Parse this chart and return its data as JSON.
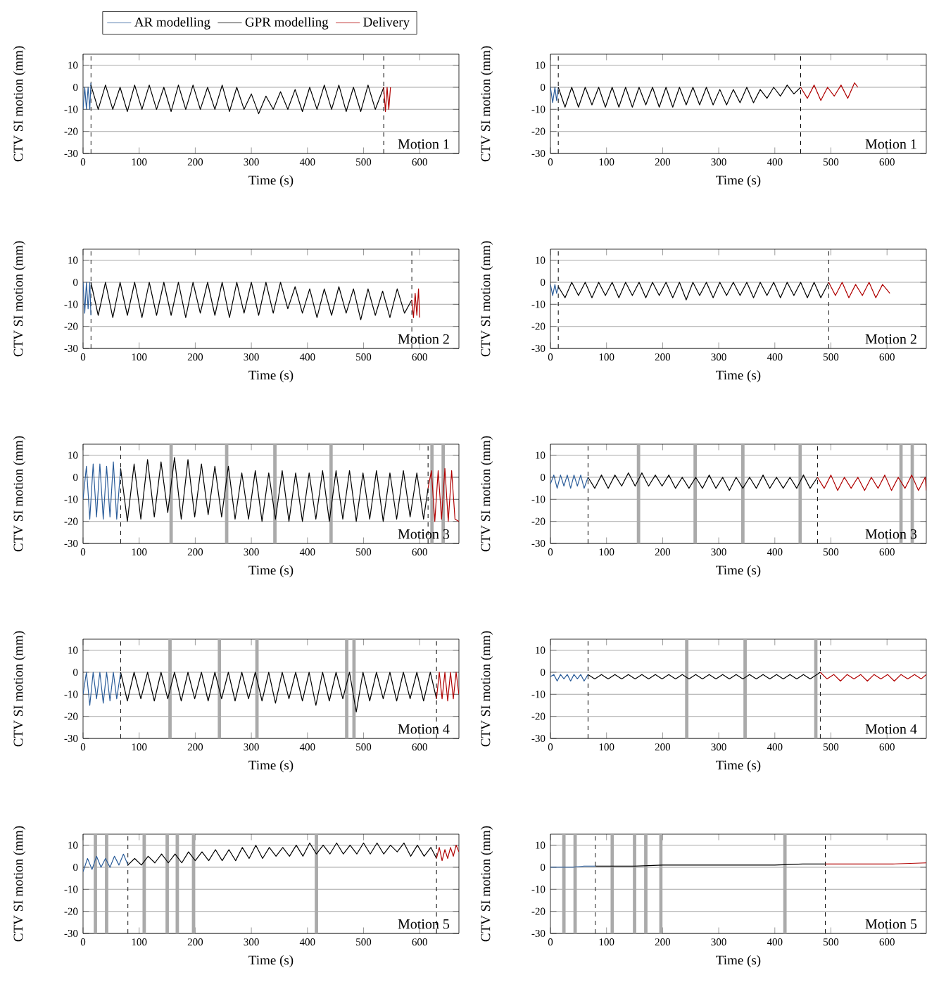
{
  "chart_data": [
    {
      "type": "line",
      "xlabel": "Time (s)",
      "ylabel": "CTV SI motion (mm)",
      "xlim": [
        0,
        670
      ],
      "ylim": [
        -30,
        15
      ],
      "xticks": [
        0,
        100,
        200,
        300,
        400,
        500,
        600
      ],
      "yticks": [
        -30,
        -20,
        -10,
        0,
        10
      ],
      "grid": "y",
      "legend": "top",
      "annotations": [
        "Motion 1"
      ],
      "ref_lines": [
        {
          "axis": "x",
          "value": 14,
          "line_style": "dashed"
        },
        {
          "axis": "x",
          "value": 536,
          "line_style": "dashed"
        }
      ],
      "series": [
        {
          "name": "AR modelling",
          "color": "#2b5d9a",
          "x": [
            0,
            3,
            6,
            9,
            12,
            14
          ],
          "values": [
            -10,
            0,
            -10,
            0,
            -10,
            2
          ]
        },
        {
          "name": "GPR modelling",
          "color": "#000000",
          "x": [
            14,
            27,
            40,
            53,
            66,
            79,
            92,
            105,
            118,
            131,
            144,
            157,
            170,
            183,
            196,
            209,
            222,
            235,
            248,
            261,
            274,
            287,
            300,
            313,
            326,
            339,
            352,
            365,
            378,
            391,
            404,
            417,
            430,
            443,
            456,
            469,
            482,
            495,
            508,
            521,
            536
          ],
          "values": [
            1,
            -10,
            1,
            -10,
            0,
            -11,
            1,
            -10,
            1,
            -10,
            0,
            -11,
            1,
            -10,
            1,
            -10,
            0,
            -10,
            1,
            -11,
            0,
            -10,
            -3,
            -12,
            -4,
            -10,
            -2,
            -10,
            -1,
            -11,
            0,
            -10,
            1,
            -10,
            1,
            -11,
            0,
            -11,
            1,
            -10,
            0
          ]
        },
        {
          "name": "Delivery",
          "color": "#b00000",
          "x": [
            536,
            539,
            542,
            545,
            548
          ],
          "values": [
            0,
            -11,
            0,
            -10,
            0
          ]
        }
      ]
    },
    {
      "type": "line",
      "xlabel": "Time (s)",
      "ylabel": "CTV SI motion (mm)",
      "xlim": [
        0,
        670
      ],
      "ylim": [
        -30,
        15
      ],
      "xticks": [
        0,
        100,
        200,
        300,
        400,
        500,
        600
      ],
      "yticks": [
        -30,
        -20,
        -10,
        0,
        10
      ],
      "grid": "y",
      "annotations": [
        "Motion 1"
      ],
      "ref_lines": [
        {
          "axis": "x",
          "value": 14,
          "line_style": "dashed"
        },
        {
          "axis": "x",
          "value": 446,
          "line_style": "dashed"
        }
      ],
      "series": [
        {
          "color": "#2b5d9a",
          "x": [
            0,
            4,
            8,
            11,
            14
          ],
          "values": [
            0,
            -7,
            0,
            -6,
            0
          ]
        },
        {
          "color": "#000000",
          "x": [
            14,
            26,
            38,
            50,
            62,
            74,
            86,
            98,
            110,
            122,
            134,
            146,
            158,
            170,
            182,
            194,
            206,
            218,
            230,
            242,
            254,
            266,
            278,
            290,
            302,
            314,
            326,
            338,
            350,
            362,
            374,
            386,
            398,
            410,
            422,
            434,
            446
          ],
          "values": [
            0,
            -9,
            0,
            -9,
            0,
            -8,
            0,
            -9,
            0,
            -9,
            0,
            -9,
            0,
            -8,
            0,
            -9,
            0,
            -9,
            0,
            -8,
            0,
            -8,
            0,
            -8,
            -1,
            -8,
            -1,
            -7,
            0,
            -7,
            -1,
            -5,
            0,
            -4,
            1,
            -3,
            0
          ]
        },
        {
          "color": "#b00000",
          "x": [
            446,
            458,
            470,
            482,
            494,
            506,
            518,
            530,
            542,
            548
          ],
          "values": [
            0,
            -5,
            1,
            -6,
            0,
            -4,
            1,
            -5,
            2,
            0
          ]
        }
      ]
    },
    {
      "type": "line",
      "xlabel": "Time (s)",
      "ylabel": "CTV SI motion (mm)",
      "xlim": [
        0,
        670
      ],
      "ylim": [
        -30,
        15
      ],
      "xticks": [
        0,
        100,
        200,
        300,
        400,
        500,
        600
      ],
      "yticks": [
        -30,
        -20,
        -10,
        0,
        10
      ],
      "grid": "y",
      "annotations": [
        "Motion 2"
      ],
      "ref_lines": [
        {
          "axis": "x",
          "value": 14,
          "line_style": "dashed"
        },
        {
          "axis": "x",
          "value": 586,
          "line_style": "dashed"
        }
      ],
      "series": [
        {
          "color": "#2b5d9a",
          "x": [
            0,
            3,
            6,
            9,
            12,
            14
          ],
          "values": [
            0,
            -14,
            0,
            -12,
            0,
            -15
          ]
        },
        {
          "color": "#000000",
          "x": [
            14,
            27,
            40,
            53,
            66,
            79,
            92,
            105,
            118,
            131,
            144,
            157,
            170,
            183,
            196,
            209,
            222,
            235,
            248,
            261,
            274,
            287,
            300,
            313,
            326,
            339,
            352,
            365,
            378,
            391,
            404,
            417,
            430,
            443,
            456,
            469,
            482,
            495,
            508,
            521,
            534,
            547,
            560,
            573,
            586
          ],
          "values": [
            0,
            -15,
            0,
            -16,
            0,
            -15,
            0,
            -16,
            0,
            -15,
            0,
            -15,
            0,
            -16,
            0,
            -14,
            0,
            -15,
            0,
            -16,
            0,
            -14,
            0,
            -15,
            0,
            -14,
            0,
            -12,
            -2,
            -14,
            -3,
            -16,
            -3,
            -15,
            -2,
            -14,
            -3,
            -17,
            -3,
            -15,
            -4,
            -16,
            -3,
            -14,
            -8
          ]
        },
        {
          "color": "#b00000",
          "x": [
            586,
            589,
            592,
            595,
            598,
            600
          ],
          "values": [
            -8,
            -16,
            -5,
            -15,
            -3,
            -16
          ]
        }
      ]
    },
    {
      "type": "line",
      "xlabel": "Time (s)",
      "ylabel": "CTV SI motion (mm)",
      "xlim": [
        0,
        670
      ],
      "ylim": [
        -30,
        15
      ],
      "xticks": [
        0,
        100,
        200,
        300,
        400,
        500,
        600
      ],
      "yticks": [
        -30,
        -20,
        -10,
        0,
        10
      ],
      "grid": "y",
      "annotations": [
        "Motion 2"
      ],
      "ref_lines": [
        {
          "axis": "x",
          "value": 14,
          "line_style": "dashed"
        },
        {
          "axis": "x",
          "value": 496,
          "line_style": "dashed"
        }
      ],
      "series": [
        {
          "color": "#2b5d9a",
          "x": [
            0,
            4,
            8,
            11,
            14
          ],
          "values": [
            -1,
            -6,
            -1,
            -5,
            -2
          ]
        },
        {
          "color": "#000000",
          "x": [
            14,
            26,
            38,
            50,
            62,
            74,
            86,
            98,
            110,
            122,
            134,
            146,
            158,
            170,
            182,
            194,
            206,
            218,
            230,
            242,
            254,
            266,
            278,
            290,
            302,
            314,
            326,
            338,
            350,
            362,
            374,
            386,
            398,
            410,
            422,
            434,
            446,
            458,
            470,
            482,
            496
          ],
          "values": [
            -2,
            -7,
            0,
            -6,
            0,
            -7,
            0,
            -6,
            0,
            -7,
            0,
            -6,
            0,
            -7,
            0,
            -6,
            0,
            -7,
            0,
            -8,
            0,
            -6,
            0,
            -7,
            0,
            -6,
            0,
            -6,
            0,
            -7,
            0,
            -6,
            0,
            -7,
            0,
            -6,
            0,
            -7,
            0,
            -7,
            0
          ]
        },
        {
          "color": "#b00000",
          "x": [
            496,
            508,
            520,
            532,
            544,
            556,
            568,
            580,
            592,
            605
          ],
          "values": [
            0,
            -6,
            0,
            -7,
            -1,
            -6,
            0,
            -7,
            -1,
            -5
          ]
        }
      ]
    },
    {
      "type": "line",
      "xlabel": "Time (s)",
      "ylabel": "CTV SI motion (mm)",
      "xlim": [
        0,
        670
      ],
      "ylim": [
        -30,
        15
      ],
      "xticks": [
        0,
        100,
        200,
        300,
        400,
        500,
        600
      ],
      "yticks": [
        -30,
        -20,
        -10,
        0,
        10
      ],
      "grid": "y",
      "annotations": [
        "Motion 3"
      ],
      "ref_lines": [
        {
          "axis": "x",
          "value": 67,
          "line_style": "dashed"
        },
        {
          "axis": "x",
          "value": 615,
          "line_style": "dashed"
        }
      ],
      "bands": [
        {
          "axis": "x",
          "from": 154,
          "to": 160,
          "color": "#aaaaaa"
        },
        {
          "axis": "x",
          "from": 253,
          "to": 259,
          "color": "#aaaaaa"
        },
        {
          "axis": "x",
          "from": 339,
          "to": 345,
          "color": "#aaaaaa"
        },
        {
          "axis": "x",
          "from": 439,
          "to": 445,
          "color": "#aaaaaa"
        },
        {
          "axis": "x",
          "from": 619,
          "to": 625,
          "color": "#aaaaaa"
        },
        {
          "axis": "x",
          "from": 639,
          "to": 645,
          "color": "#aaaaaa"
        }
      ],
      "series": [
        {
          "color": "#2b5d9a",
          "x": [
            0,
            6,
            12,
            18,
            24,
            30,
            36,
            42,
            48,
            54,
            60,
            67
          ],
          "values": [
            -10,
            5,
            -19,
            6,
            -18,
            6,
            -19,
            5,
            -18,
            7,
            -19,
            4
          ]
        },
        {
          "color": "#000000",
          "x": [
            67,
            79,
            91,
            103,
            115,
            127,
            139,
            151,
            163,
            175,
            187,
            199,
            211,
            223,
            235,
            247,
            259,
            271,
            283,
            295,
            307,
            319,
            331,
            343,
            355,
            367,
            379,
            391,
            403,
            415,
            427,
            439,
            451,
            463,
            475,
            487,
            499,
            511,
            523,
            535,
            547,
            559,
            571,
            583,
            595,
            607,
            615
          ],
          "values": [
            4,
            -20,
            6,
            -19,
            8,
            -18,
            7,
            -16,
            9,
            -19,
            8,
            -18,
            6,
            -17,
            5,
            -18,
            5,
            -19,
            2,
            -19,
            3,
            -20,
            2,
            -19,
            3,
            -20,
            2,
            -20,
            2,
            -19,
            3,
            -20,
            3,
            -19,
            3,
            -20,
            2,
            -19,
            3,
            -20,
            2,
            -19,
            3,
            -18,
            2,
            -19,
            -5
          ]
        },
        {
          "color": "#b00000",
          "x": [
            615,
            621,
            627,
            633,
            639,
            645,
            651,
            657,
            663,
            670
          ],
          "values": [
            -5,
            3,
            -20,
            3,
            -19,
            4,
            -20,
            3,
            -19,
            -20
          ]
        }
      ]
    },
    {
      "type": "line",
      "xlabel": "Time (s)",
      "ylabel": "CTV SI motion (mm)",
      "xlim": [
        0,
        670
      ],
      "ylim": [
        -30,
        15
      ],
      "xticks": [
        0,
        100,
        200,
        300,
        400,
        500,
        600
      ],
      "yticks": [
        -30,
        -20,
        -10,
        0,
        10
      ],
      "grid": "y",
      "annotations": [
        "Motion 3"
      ],
      "ref_lines": [
        {
          "axis": "x",
          "value": 67,
          "line_style": "dashed"
        },
        {
          "axis": "x",
          "value": 476,
          "line_style": "dashed"
        }
      ],
      "bands": [
        {
          "axis": "x",
          "from": 154,
          "to": 160,
          "color": "#aaaaaa"
        },
        {
          "axis": "x",
          "from": 255,
          "to": 261,
          "color": "#aaaaaa"
        },
        {
          "axis": "x",
          "from": 340,
          "to": 346,
          "color": "#aaaaaa"
        },
        {
          "axis": "x",
          "from": 442,
          "to": 448,
          "color": "#aaaaaa"
        },
        {
          "axis": "x",
          "from": 622,
          "to": 628,
          "color": "#aaaaaa"
        },
        {
          "axis": "x",
          "from": 642,
          "to": 648,
          "color": "#aaaaaa"
        }
      ],
      "series": [
        {
          "color": "#2b5d9a",
          "x": [
            0,
            6,
            12,
            18,
            24,
            30,
            36,
            42,
            48,
            54,
            60,
            67
          ],
          "values": [
            -3,
            1,
            -5,
            1,
            -4,
            1,
            -5,
            1,
            -4,
            1,
            -5,
            0
          ]
        },
        {
          "color": "#000000",
          "x": [
            67,
            79,
            91,
            103,
            115,
            127,
            139,
            151,
            163,
            175,
            187,
            199,
            211,
            223,
            235,
            247,
            259,
            271,
            283,
            295,
            307,
            319,
            331,
            343,
            355,
            367,
            379,
            391,
            403,
            415,
            427,
            439,
            451,
            463,
            476
          ],
          "values": [
            0,
            -5,
            1,
            -5,
            1,
            -4,
            2,
            -4,
            2,
            -4,
            1,
            -4,
            1,
            -5,
            0,
            -5,
            0,
            -5,
            1,
            -5,
            0,
            -6,
            0,
            -5,
            0,
            -5,
            1,
            -5,
            0,
            -5,
            0,
            -5,
            1,
            -5,
            0
          ]
        },
        {
          "color": "#b00000",
          "x": [
            476,
            488,
            500,
            512,
            524,
            536,
            548,
            560,
            572,
            584,
            596,
            608,
            620,
            632,
            644,
            656,
            668,
            670
          ],
          "values": [
            0,
            -5,
            1,
            -6,
            0,
            -5,
            0,
            -6,
            0,
            -5,
            1,
            -6,
            0,
            -5,
            1,
            -6,
            0,
            -6
          ]
        }
      ]
    },
    {
      "type": "line",
      "xlabel": "Time (s)",
      "ylabel": "CTV SI motion (mm)",
      "xlim": [
        0,
        670
      ],
      "ylim": [
        -30,
        15
      ],
      "xticks": [
        0,
        100,
        200,
        300,
        400,
        500,
        600
      ],
      "yticks": [
        -30,
        -20,
        -10,
        0,
        10
      ],
      "grid": "y",
      "annotations": [
        "Motion 4"
      ],
      "ref_lines": [
        {
          "axis": "x",
          "value": 67,
          "line_style": "dashed"
        },
        {
          "axis": "x",
          "value": 630,
          "line_style": "dashed"
        }
      ],
      "bands": [
        {
          "axis": "x",
          "from": 152,
          "to": 158,
          "color": "#aaaaaa"
        },
        {
          "axis": "x",
          "from": 240,
          "to": 246,
          "color": "#aaaaaa"
        },
        {
          "axis": "x",
          "from": 307,
          "to": 313,
          "color": "#aaaaaa"
        },
        {
          "axis": "x",
          "from": 467,
          "to": 473,
          "color": "#aaaaaa"
        },
        {
          "axis": "x",
          "from": 480,
          "to": 486,
          "color": "#aaaaaa"
        }
      ],
      "series": [
        {
          "color": "#2b5d9a",
          "x": [
            0,
            6,
            12,
            18,
            24,
            30,
            36,
            42,
            48,
            54,
            60,
            67
          ],
          "values": [
            -10,
            0,
            -15,
            0,
            -12,
            0,
            -14,
            0,
            -13,
            0,
            -12,
            0
          ]
        },
        {
          "color": "#000000",
          "x": [
            67,
            79,
            91,
            103,
            115,
            127,
            139,
            151,
            163,
            175,
            187,
            199,
            211,
            223,
            235,
            247,
            259,
            271,
            283,
            295,
            307,
            319,
            331,
            343,
            355,
            367,
            379,
            391,
            403,
            415,
            427,
            439,
            451,
            463,
            475,
            487,
            499,
            511,
            523,
            535,
            547,
            559,
            571,
            583,
            595,
            607,
            619,
            630
          ],
          "values": [
            0,
            -13,
            0,
            -12,
            0,
            -13,
            0,
            -12,
            0,
            -13,
            0,
            -12,
            0,
            -13,
            0,
            -12,
            0,
            -13,
            0,
            -12,
            0,
            -13,
            0,
            -14,
            0,
            -12,
            0,
            -13,
            0,
            -15,
            0,
            -13,
            0,
            -12,
            0,
            -18,
            0,
            -13,
            0,
            -12,
            0,
            -13,
            0,
            -12,
            0,
            -13,
            0,
            -12
          ]
        },
        {
          "color": "#b00000",
          "x": [
            630,
            635,
            640,
            645,
            650,
            655,
            660,
            665,
            670
          ],
          "values": [
            -12,
            0,
            -12,
            0,
            -13,
            0,
            -12,
            0,
            -10
          ]
        }
      ]
    },
    {
      "type": "line",
      "xlabel": "Time (s)",
      "ylabel": "CTV SI motion (mm)",
      "xlim": [
        0,
        670
      ],
      "ylim": [
        -30,
        15
      ],
      "xticks": [
        0,
        100,
        200,
        300,
        400,
        500,
        600
      ],
      "yticks": [
        -30,
        -20,
        -10,
        0,
        10
      ],
      "grid": "y",
      "annotations": [
        "Motion 4"
      ],
      "ref_lines": [
        {
          "axis": "x",
          "value": 67,
          "line_style": "dashed"
        },
        {
          "axis": "x",
          "value": 481,
          "line_style": "dashed"
        }
      ],
      "bands": [
        {
          "axis": "x",
          "from": 240,
          "to": 246,
          "color": "#aaaaaa"
        },
        {
          "axis": "x",
          "from": 344,
          "to": 350,
          "color": "#aaaaaa"
        },
        {
          "axis": "x",
          "from": 470,
          "to": 476,
          "color": "#aaaaaa"
        }
      ],
      "series": [
        {
          "color": "#2b5d9a",
          "x": [
            0,
            6,
            12,
            18,
            24,
            30,
            36,
            42,
            48,
            54,
            60,
            67
          ],
          "values": [
            -2,
            -1,
            -4,
            -1,
            -3,
            -1,
            -4,
            -1,
            -3,
            -1,
            -4,
            -1
          ]
        },
        {
          "color": "#000000",
          "x": [
            67,
            79,
            91,
            103,
            115,
            127,
            139,
            151,
            163,
            175,
            187,
            199,
            211,
            223,
            235,
            247,
            259,
            271,
            283,
            295,
            307,
            319,
            331,
            343,
            355,
            367,
            379,
            391,
            403,
            415,
            427,
            439,
            451,
            463,
            475,
            481
          ],
          "values": [
            -1,
            -3,
            -1,
            -3,
            -1,
            -3,
            -1,
            -3,
            -1,
            -3,
            -1,
            -3,
            -1,
            -3,
            -1,
            -3,
            -1,
            -3,
            -1,
            -3,
            -1,
            -3,
            -1,
            -3,
            -1,
            -3,
            -1,
            -3,
            -1,
            -3,
            -1,
            -3,
            -1,
            -3,
            -1,
            0
          ]
        },
        {
          "color": "#b00000",
          "x": [
            481,
            493,
            505,
            517,
            529,
            541,
            553,
            565,
            577,
            589,
            601,
            613,
            625,
            637,
            649,
            661,
            670
          ],
          "values": [
            0,
            -3,
            -1,
            -4,
            -1,
            -3,
            -1,
            -4,
            -1,
            -3,
            -1,
            -4,
            -1,
            -3,
            -1,
            -3,
            -1
          ]
        }
      ]
    },
    {
      "type": "line",
      "xlabel": "Time (s)",
      "ylabel": "CTV SI motion (mm)",
      "xlim": [
        0,
        670
      ],
      "ylim": [
        -30,
        15
      ],
      "xticks": [
        0,
        100,
        200,
        300,
        400,
        500,
        600
      ],
      "yticks": [
        -30,
        -20,
        -10,
        0,
        10
      ],
      "grid": "y",
      "annotations": [
        "Motion 5"
      ],
      "ref_lines": [
        {
          "axis": "x",
          "value": 80,
          "line_style": "dashed"
        },
        {
          "axis": "x",
          "value": 630,
          "line_style": "dashed"
        }
      ],
      "bands": [
        {
          "axis": "x",
          "from": 19,
          "to": 25,
          "color": "#aaaaaa"
        },
        {
          "axis": "x",
          "from": 39,
          "to": 45,
          "color": "#aaaaaa"
        },
        {
          "axis": "x",
          "from": 106,
          "to": 112,
          "color": "#aaaaaa"
        },
        {
          "axis": "x",
          "from": 147,
          "to": 153,
          "color": "#aaaaaa"
        },
        {
          "axis": "x",
          "from": 165,
          "to": 171,
          "color": "#aaaaaa"
        },
        {
          "axis": "x",
          "from": 194,
          "to": 200,
          "color": "#aaaaaa"
        },
        {
          "axis": "x",
          "from": 413,
          "to": 419,
          "color": "#aaaaaa"
        }
      ],
      "series": [
        {
          "color": "#2b5d9a",
          "x": [
            0,
            8,
            16,
            24,
            32,
            40,
            48,
            56,
            64,
            72,
            80
          ],
          "values": [
            -2,
            4,
            -1,
            5,
            0,
            4,
            0,
            5,
            1,
            6,
            1
          ]
        },
        {
          "color": "#000000",
          "x": [
            80,
            92,
            104,
            116,
            128,
            140,
            152,
            164,
            176,
            188,
            200,
            212,
            224,
            236,
            248,
            260,
            272,
            284,
            296,
            308,
            320,
            332,
            344,
            356,
            368,
            380,
            392,
            404,
            416,
            428,
            440,
            452,
            464,
            476,
            488,
            500,
            512,
            524,
            536,
            548,
            560,
            572,
            584,
            596,
            608,
            620,
            630
          ],
          "values": [
            1,
            4,
            1,
            5,
            2,
            6,
            2,
            6,
            2,
            7,
            3,
            7,
            3,
            8,
            3,
            8,
            3,
            9,
            4,
            10,
            4,
            9,
            5,
            9,
            5,
            10,
            5,
            11,
            6,
            10,
            6,
            11,
            6,
            10,
            6,
            11,
            6,
            11,
            6,
            10,
            7,
            11,
            5,
            10,
            5,
            9,
            4
          ]
        },
        {
          "color": "#b00000",
          "x": [
            630,
            635,
            640,
            645,
            650,
            655,
            660,
            665,
            670
          ],
          "values": [
            4,
            9,
            3,
            8,
            4,
            9,
            5,
            10,
            7
          ]
        }
      ]
    },
    {
      "type": "line",
      "xlabel": "Time (s)",
      "ylabel": "CTV SI motion (mm)",
      "xlim": [
        0,
        670
      ],
      "ylim": [
        -30,
        15
      ],
      "xticks": [
        0,
        100,
        200,
        300,
        400,
        500,
        600
      ],
      "yticks": [
        -30,
        -20,
        -10,
        0,
        10
      ],
      "grid": "y",
      "annotations": [
        "Motion 5"
      ],
      "ref_lines": [
        {
          "axis": "x",
          "value": 80,
          "line_style": "dashed"
        },
        {
          "axis": "x",
          "value": 490,
          "line_style": "dashed"
        }
      ],
      "bands": [
        {
          "axis": "x",
          "from": 21,
          "to": 27,
          "color": "#aaaaaa"
        },
        {
          "axis": "x",
          "from": 41,
          "to": 47,
          "color": "#aaaaaa"
        },
        {
          "axis": "x",
          "from": 107,
          "to": 113,
          "color": "#aaaaaa"
        },
        {
          "axis": "x",
          "from": 147,
          "to": 153,
          "color": "#aaaaaa"
        },
        {
          "axis": "x",
          "from": 167,
          "to": 173,
          "color": "#aaaaaa"
        },
        {
          "axis": "x",
          "from": 194,
          "to": 200,
          "color": "#aaaaaa"
        },
        {
          "axis": "x",
          "from": 415,
          "to": 421,
          "color": "#aaaaaa"
        }
      ],
      "series": [
        {
          "color": "#2b5d9a",
          "x": [
            0,
            20,
            40,
            60,
            80
          ],
          "values": [
            0,
            0,
            0,
            0.5,
            0.5
          ]
        },
        {
          "color": "#000000",
          "x": [
            80,
            150,
            200,
            250,
            300,
            350,
            400,
            450,
            490
          ],
          "values": [
            0.5,
            0.5,
            1,
            1,
            1,
            1,
            1,
            1.5,
            1.5
          ]
        },
        {
          "color": "#b00000",
          "x": [
            490,
            550,
            610,
            670
          ],
          "values": [
            1.5,
            1.5,
            1.5,
            2
          ]
        }
      ]
    }
  ]
}
